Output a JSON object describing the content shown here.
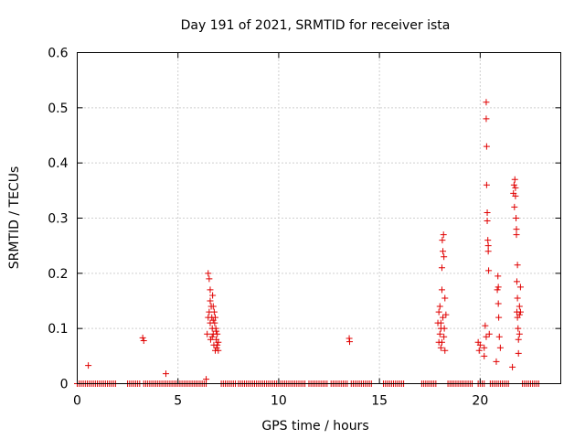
{
  "chart_data": {
    "type": "scatter",
    "title": "Day 191 of 2021, SRMTID for receiver ista",
    "xlabel": "GPS time / hours",
    "ylabel": "SRMTID / TECUs",
    "xlim": [
      0,
      24
    ],
    "ylim": [
      0,
      0.6
    ],
    "x_ticks": [
      0,
      5,
      10,
      15,
      20
    ],
    "x_tick_labels": [
      "0",
      "5",
      "10",
      "15",
      "20"
    ],
    "y_ticks": [
      0,
      0.1,
      0.2,
      0.3,
      0.4,
      0.5,
      0.6
    ],
    "y_tick_labels": [
      "0",
      "0.1",
      "0.2",
      "0.3",
      "0.4",
      "0.5",
      "0.6"
    ],
    "grid": true,
    "marker": "+",
    "color": "#e00000",
    "series": [
      {
        "name": "SRMTID",
        "points": [
          [
            0.55,
            0.033
          ],
          [
            3.25,
            0.083
          ],
          [
            3.3,
            0.078
          ],
          [
            4.4,
            0.018
          ],
          [
            6.4,
            0.008
          ],
          [
            6.45,
            0.09
          ],
          [
            6.5,
            0.12
          ],
          [
            6.5,
            0.2
          ],
          [
            6.55,
            0.19
          ],
          [
            6.55,
            0.13
          ],
          [
            6.6,
            0.17
          ],
          [
            6.6,
            0.15
          ],
          [
            6.6,
            0.11
          ],
          [
            6.62,
            0.08
          ],
          [
            6.65,
            0.14
          ],
          [
            6.68,
            0.12
          ],
          [
            6.7,
            0.1
          ],
          [
            6.72,
            0.16
          ],
          [
            6.75,
            0.14
          ],
          [
            6.75,
            0.09
          ],
          [
            6.78,
            0.07
          ],
          [
            6.8,
            0.13
          ],
          [
            6.82,
            0.11
          ],
          [
            6.85,
            0.06
          ],
          [
            6.88,
            0.1
          ],
          [
            6.9,
            0.08
          ],
          [
            6.92,
            0.065
          ],
          [
            6.95,
            0.07
          ],
          [
            6.95,
            0.09
          ],
          [
            7.0,
            0.075
          ],
          [
            7.0,
            0.06
          ],
          [
            6.85,
            0.12
          ],
          [
            6.7,
            0.085
          ],
          [
            6.75,
            0.115
          ],
          [
            6.9,
            0.095
          ],
          [
            13.5,
            0.082
          ],
          [
            13.52,
            0.076
          ],
          [
            17.9,
            0.11
          ],
          [
            17.95,
            0.13
          ],
          [
            17.95,
            0.075
          ],
          [
            18.0,
            0.09
          ],
          [
            18.0,
            0.14
          ],
          [
            18.05,
            0.065
          ],
          [
            18.05,
            0.11
          ],
          [
            18.1,
            0.21
          ],
          [
            18.1,
            0.17
          ],
          [
            18.12,
            0.26
          ],
          [
            18.15,
            0.24
          ],
          [
            18.15,
            0.12
          ],
          [
            18.18,
            0.27
          ],
          [
            18.2,
            0.23
          ],
          [
            18.2,
            0.085
          ],
          [
            18.22,
            0.1
          ],
          [
            18.25,
            0.06
          ],
          [
            18.25,
            0.155
          ],
          [
            18.3,
            0.125
          ],
          [
            18.05,
            0.1
          ],
          [
            18.1,
            0.075
          ],
          [
            19.9,
            0.075
          ],
          [
            19.95,
            0.06
          ],
          [
            20.0,
            0.07
          ],
          [
            20.2,
            0.065
          ],
          [
            20.2,
            0.05
          ],
          [
            20.25,
            0.105
          ],
          [
            20.3,
            0.51
          ],
          [
            20.3,
            0.48
          ],
          [
            20.32,
            0.43
          ],
          [
            20.32,
            0.36
          ],
          [
            20.35,
            0.31
          ],
          [
            20.35,
            0.295
          ],
          [
            20.38,
            0.26
          ],
          [
            20.4,
            0.25
          ],
          [
            20.4,
            0.24
          ],
          [
            20.42,
            0.205
          ],
          [
            20.45,
            0.09
          ],
          [
            20.3,
            0.085
          ],
          [
            20.8,
            0.04
          ],
          [
            20.85,
            0.17
          ],
          [
            20.88,
            0.195
          ],
          [
            20.9,
            0.145
          ],
          [
            20.92,
            0.12
          ],
          [
            20.95,
            0.085
          ],
          [
            21.0,
            0.065
          ],
          [
            20.9,
            0.175
          ],
          [
            21.6,
            0.03
          ],
          [
            21.65,
            0.345
          ],
          [
            21.68,
            0.36
          ],
          [
            21.7,
            0.32
          ],
          [
            21.72,
            0.37
          ],
          [
            21.75,
            0.355
          ],
          [
            21.75,
            0.34
          ],
          [
            21.78,
            0.3
          ],
          [
            21.8,
            0.28
          ],
          [
            21.8,
            0.27
          ],
          [
            21.82,
            0.185
          ],
          [
            21.82,
            0.13
          ],
          [
            21.85,
            0.12
          ],
          [
            21.85,
            0.155
          ],
          [
            21.88,
            0.1
          ],
          [
            21.9,
            0.08
          ],
          [
            21.9,
            0.055
          ],
          [
            21.95,
            0.14
          ],
          [
            21.95,
            0.09
          ],
          [
            22.0,
            0.175
          ],
          [
            22.0,
            0.13
          ],
          [
            21.85,
            0.215
          ],
          [
            21.95,
            0.125
          ]
        ],
        "zero_runs": [
          [
            0.0,
            1.9
          ],
          [
            2.5,
            3.1
          ],
          [
            3.3,
            4.9
          ],
          [
            5.0,
            6.45
          ],
          [
            7.15,
            7.9
          ],
          [
            8.0,
            9.7
          ],
          [
            9.8,
            11.3
          ],
          [
            11.5,
            12.4
          ],
          [
            12.6,
            13.4
          ],
          [
            13.6,
            14.6
          ],
          [
            15.2,
            16.2
          ],
          [
            17.1,
            17.8
          ],
          [
            18.4,
            19.6
          ],
          [
            19.9,
            20.2
          ],
          [
            20.5,
            21.4
          ],
          [
            22.1,
            22.9
          ]
        ]
      }
    ]
  }
}
